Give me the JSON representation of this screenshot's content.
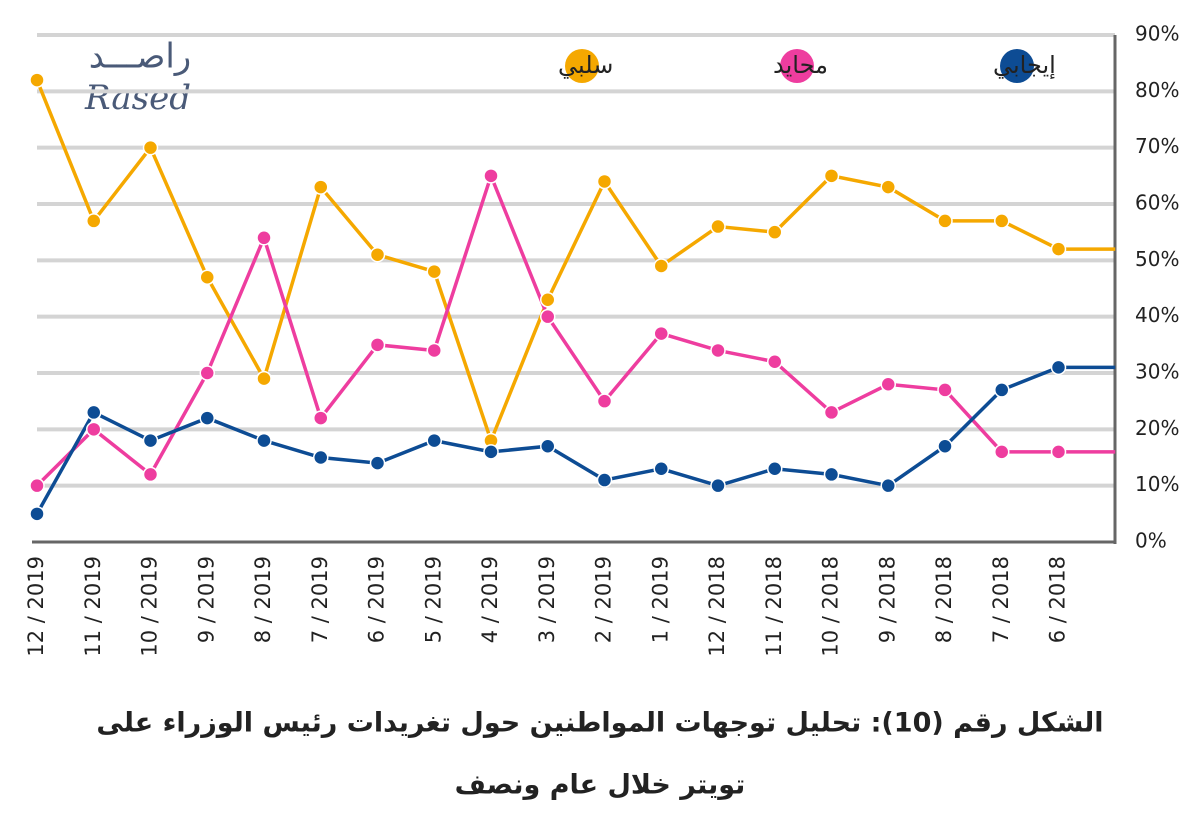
{
  "chart_data": {
    "type": "line",
    "logo": {
      "arabic": "راصـــد",
      "latin": "Rased"
    },
    "categories": [
      "12 / 2019",
      "11 / 2019",
      "10 / 2019",
      "9 / 2019",
      "8 / 2019",
      "7 / 2019",
      "6 / 2019",
      "5 / 2019",
      "4 / 2019",
      "3 / 2019",
      "2 / 2019",
      "1 / 2019",
      "12 / 2018",
      "11 / 2018",
      "10 / 2018",
      "9 / 2018",
      "8 / 2018",
      "7 / 2018",
      "6 / 2018",
      null
    ],
    "series": [
      {
        "name": "سلبي",
        "color": "#f5a800",
        "values": [
          82,
          57,
          70,
          47,
          29,
          63,
          51,
          48,
          18,
          43,
          64,
          49,
          56,
          55,
          65,
          63,
          57,
          57,
          52,
          52
        ]
      },
      {
        "name": "محايد",
        "color": "#ee3d9f",
        "values": [
          10,
          20,
          12,
          30,
          54,
          22,
          35,
          34,
          65,
          40,
          25,
          37,
          34,
          32,
          23,
          28,
          27,
          16,
          16,
          16
        ]
      },
      {
        "name": "إيجابي",
        "color": "#0d4c94",
        "values": [
          5,
          23,
          18,
          22,
          18,
          15,
          14,
          18,
          16,
          17,
          11,
          13,
          10,
          13,
          12,
          10,
          17,
          27,
          31,
          31
        ]
      }
    ],
    "ylim": [
      0,
      90
    ],
    "yticks": [
      {
        "value": 0,
        "label": "0%"
      },
      {
        "value": 10,
        "label": "10%"
      },
      {
        "value": 20,
        "label": "20%"
      },
      {
        "value": 30,
        "label": "30%"
      },
      {
        "value": 40,
        "label": "40%"
      },
      {
        "value": 50,
        "label": "50%"
      },
      {
        "value": 60,
        "label": "60%"
      },
      {
        "value": 70,
        "label": "70%"
      },
      {
        "value": 80,
        "label": "80%"
      },
      {
        "value": 90,
        "label": "90%"
      }
    ],
    "grid": true,
    "caption": [
      "الشكل رقم (10): تحليل توجهات المواطنين حول تغريدات رئيس الوزراء على",
      "تويتر خلال عام ونصف"
    ]
  }
}
